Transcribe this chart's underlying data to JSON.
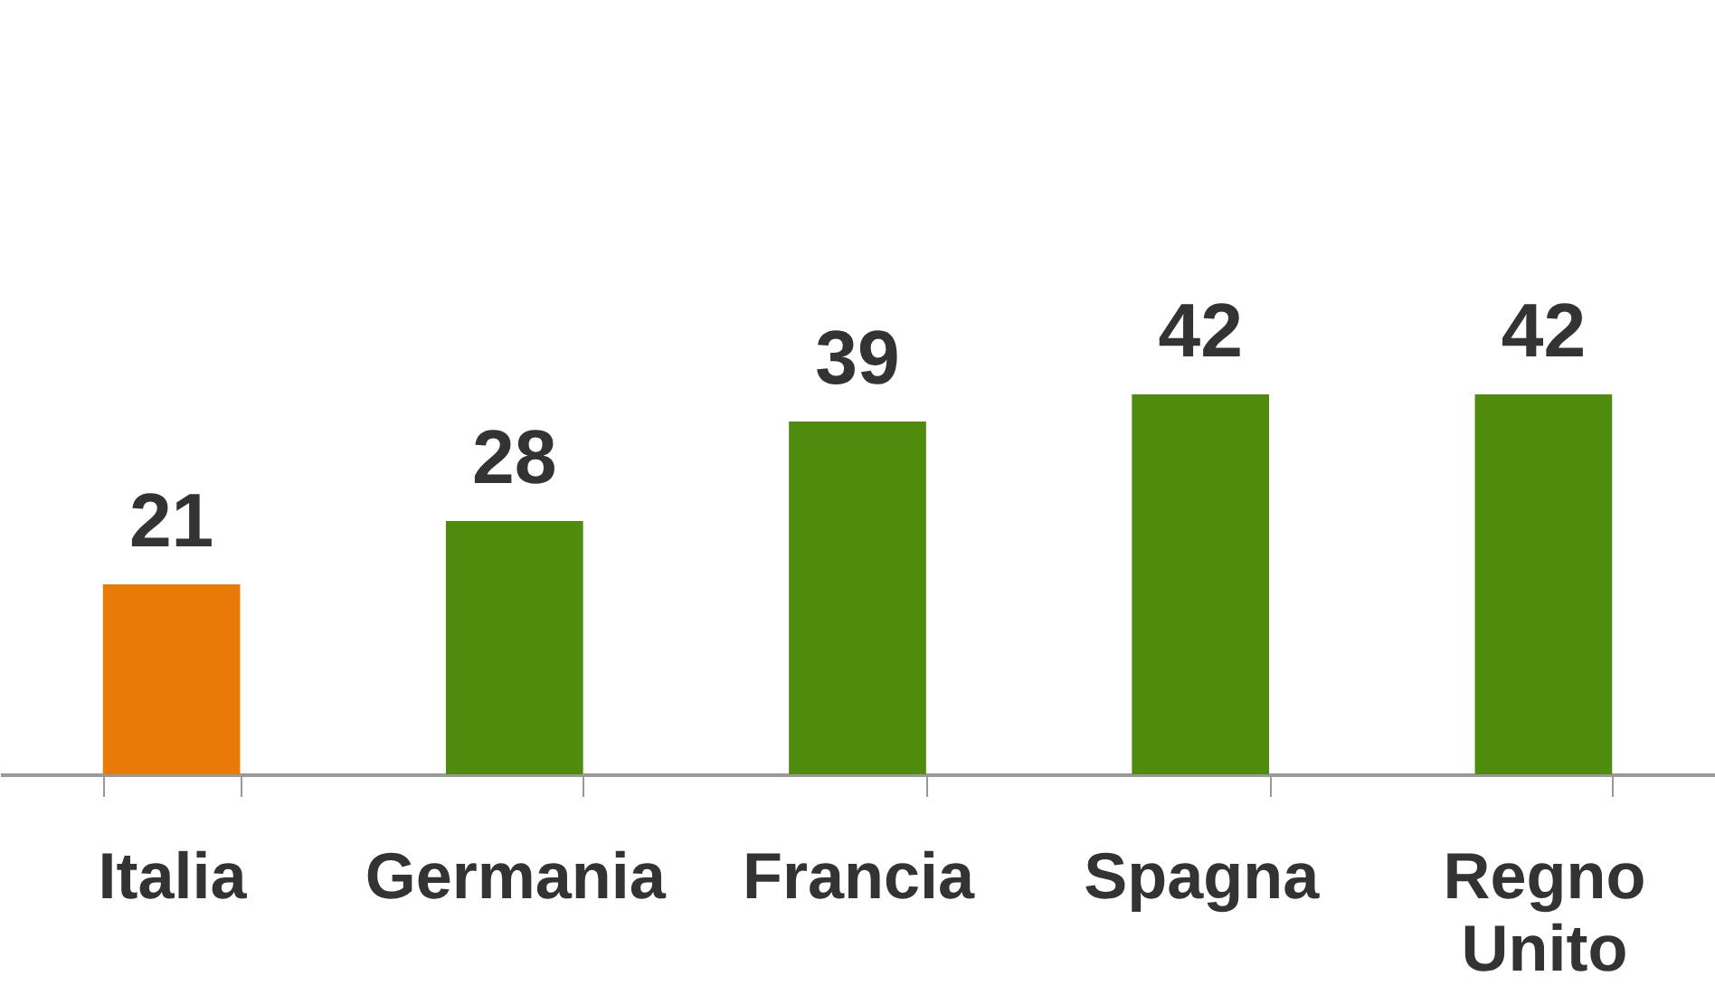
{
  "chart_data": {
    "type": "bar",
    "categories": [
      "Italia",
      "Germania",
      "Francia",
      "Spagna",
      "Regno Unito"
    ],
    "values": [
      21,
      28,
      39,
      42,
      42
    ],
    "colors": [
      "#e87a05",
      "#4f8c0e",
      "#4f8c0e",
      "#4f8c0e",
      "#4f8c0e"
    ],
    "data_labels": true,
    "tick_labels": "x"
  }
}
